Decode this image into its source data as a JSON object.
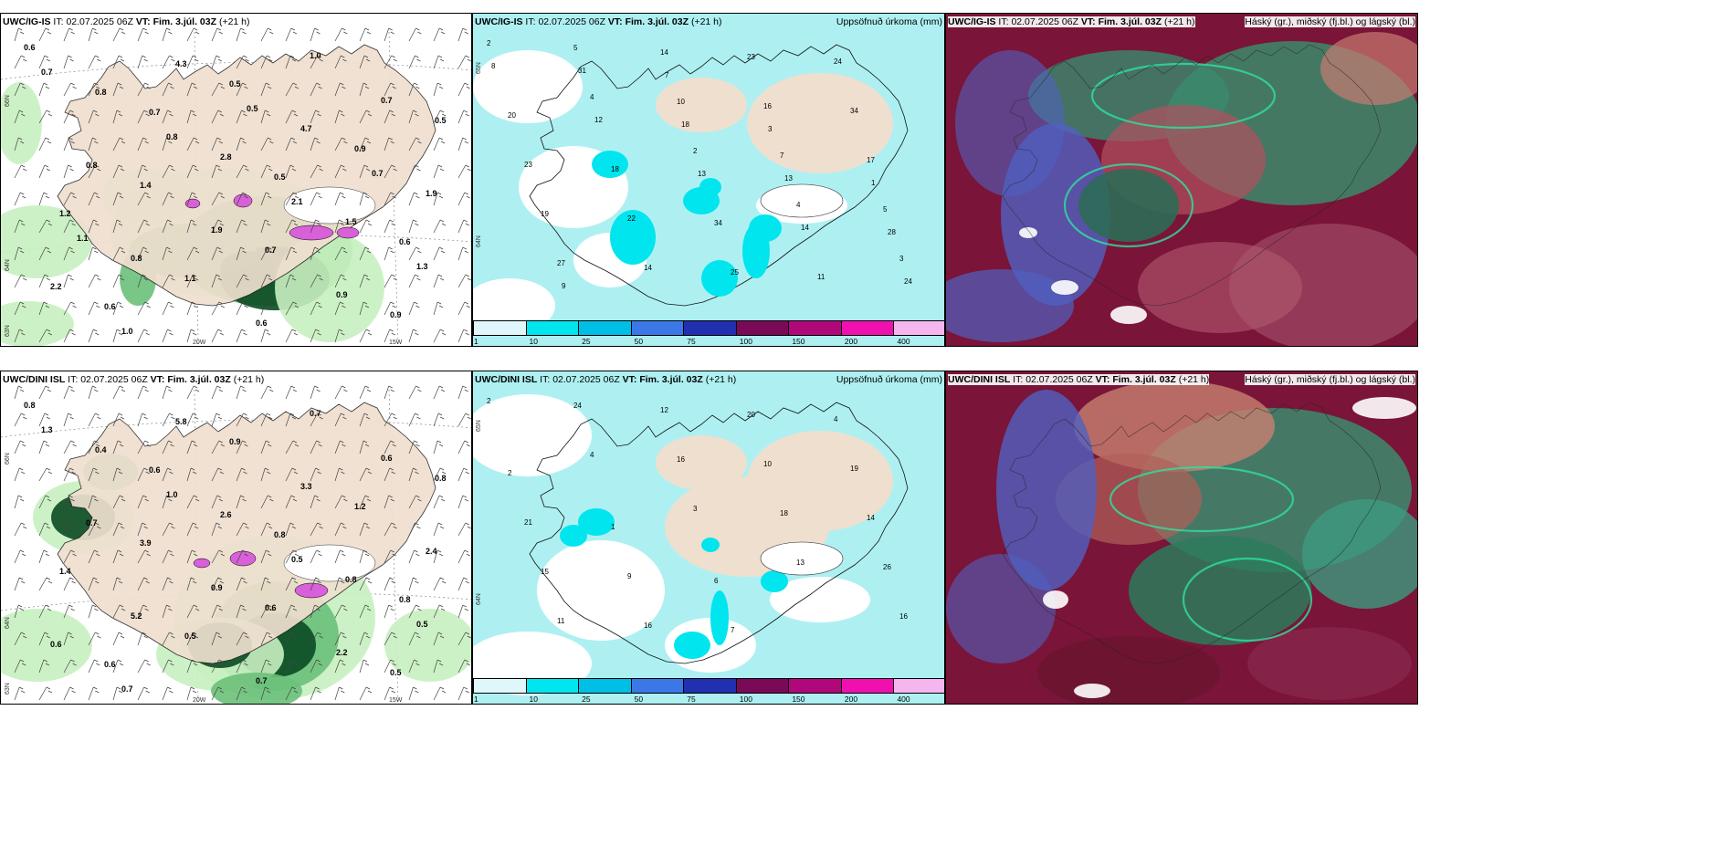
{
  "panels": [
    {
      "id": "ig-is-wind",
      "model": "UWC/IG-IS",
      "it_label": "IT:",
      "it_value": "02.07.2025 06Z",
      "vt_label": "VT:",
      "vt_value": "Fim. 3.júl. 03Z",
      "lead": "(+21 h)",
      "right_title": "",
      "axis_labels": [
        "66N",
        "64N",
        "63N",
        "20W",
        "15W"
      ],
      "values": [
        "0.6",
        "0.7",
        "0.5",
        "0.6",
        "0.6",
        "0.5",
        "0.9",
        "1.2",
        "1.1",
        "1.0",
        "0.5",
        "1.4",
        "0.7",
        "0.9",
        "0.8",
        "2.8",
        "1.5",
        "2.2",
        "4.3",
        "4.7",
        "1.9",
        "0.8",
        "0.6",
        "0.7",
        "0.8",
        "1.9",
        "0.9",
        "0.7",
        "0.8",
        "2.1",
        "1.3",
        "1.0",
        "0.5",
        "0.7",
        "1.1"
      ]
    },
    {
      "id": "ig-is-precip",
      "model": "UWC/IG-IS",
      "it_label": "IT:",
      "it_value": "02.07.2025 06Z",
      "vt_label": "VT:",
      "vt_value": "Fim. 3.júl. 03Z",
      "lead": "(+21 h)",
      "right_title": "Uppsöfnuð úrkoma (mm)",
      "axis_labels": [
        "65N",
        "64N"
      ],
      "values": [
        "2",
        "4",
        "2",
        "4",
        "3",
        "5",
        "10",
        "7",
        "5",
        "27",
        "14",
        "16",
        "17",
        "19",
        "14",
        "23",
        "34",
        "23",
        "22",
        "25",
        "24",
        "20",
        "18",
        "34",
        "11",
        "8",
        "12",
        "13",
        "14",
        "24",
        "31",
        "18",
        "13",
        "28",
        "9",
        "7",
        "3",
        "1"
      ],
      "colorbar": {
        "ticks": [
          "1",
          "10",
          "25",
          "50",
          "75",
          "100",
          "150",
          "200",
          "400"
        ],
        "colors": [
          "#dff7fa",
          "#00e5ee",
          "#00bfe6",
          "#3a78e8",
          "#2030b0",
          "#7a0a58",
          "#b0087a",
          "#f010b0",
          "#f5b6f0"
        ]
      }
    },
    {
      "id": "ig-is-cloud",
      "model": "UWC/IG-IS",
      "it_label": "IT:",
      "it_value": "02.07.2025 06Z",
      "vt_label": "VT:",
      "vt_value": "Fim. 3.júl. 03Z",
      "lead": "(+21 h)",
      "right_title": "Háský (gr.), miðský (fj.bl.) og lágský (bl.)"
    },
    {
      "id": "dini-wind",
      "model": "UWC/DINI ISL",
      "it_label": "IT:",
      "it_value": "02.07.2025 06Z",
      "vt_label": "VT:",
      "vt_value": "Fim. 3.júl. 03Z",
      "lead": "(+21 h)",
      "right_title": "",
      "axis_labels": [
        "66N",
        "64N",
        "63N",
        "20W",
        "15W"
      ],
      "values": [
        "0.8",
        "0.6",
        "0.8",
        "0.8",
        "0.6",
        "0.9",
        "1.2",
        "1.4",
        "0.5",
        "0.7",
        "0.8",
        "3.9",
        "0.6",
        "0.5",
        "0.4",
        "2.6",
        "0.8",
        "0.6",
        "5.8",
        "3.3",
        "2.4",
        "5.2",
        "0.7",
        "0.6",
        "0.7",
        "0.9",
        "2.2",
        "1.3",
        "1.0",
        "0.5",
        "0.5",
        "0.7"
      ]
    },
    {
      "id": "dini-precip",
      "model": "UWC/DINI ISL",
      "it_label": "IT:",
      "it_value": "02.07.2025 06Z",
      "vt_label": "VT:",
      "vt_value": "Fim. 3.júl. 03Z",
      "lead": "(+21 h)",
      "right_title": "Uppsöfnuð úrkoma (mm)",
      "axis_labels": [
        "65N",
        "64N"
      ],
      "values": [
        "2",
        "4",
        "3",
        "13",
        "16",
        "24",
        "16",
        "18",
        "26",
        "11",
        "12",
        "10",
        "14",
        "15",
        "16",
        "20",
        "19",
        "21",
        "9",
        "7",
        "4",
        "2",
        "1",
        "6"
      ],
      "colorbar": {
        "ticks": [
          "1",
          "10",
          "25",
          "50",
          "75",
          "100",
          "150",
          "200",
          "400"
        ],
        "colors": [
          "#dff7fa",
          "#00e5ee",
          "#00bfe6",
          "#3a78e8",
          "#2030b0",
          "#7a0a58",
          "#b0087a",
          "#f010b0",
          "#f5b6f0"
        ]
      }
    },
    {
      "id": "dini-cloud",
      "model": "UWC/DINI ISL",
      "it_label": "IT:",
      "it_value": "02.07.2025 06Z",
      "vt_label": "VT:",
      "vt_value": "Fim. 3.júl. 03Z",
      "lead": "(+21 h)",
      "right_title": "Háský (gr.), miðský (fj.bl.) og lágský (bl.)"
    }
  ],
  "colors": {
    "land": "#efdfcf",
    "ocean_precip": "#aef0f2",
    "green_light": "#c8f0c0",
    "green_mid": "#6cc07a",
    "green_dark": "#0b4a22",
    "magenta": "#d860d8",
    "cloud_bg": "#7a1438",
    "cloud_green": "#2a7a5a",
    "cloud_blue": "#5060c0"
  }
}
